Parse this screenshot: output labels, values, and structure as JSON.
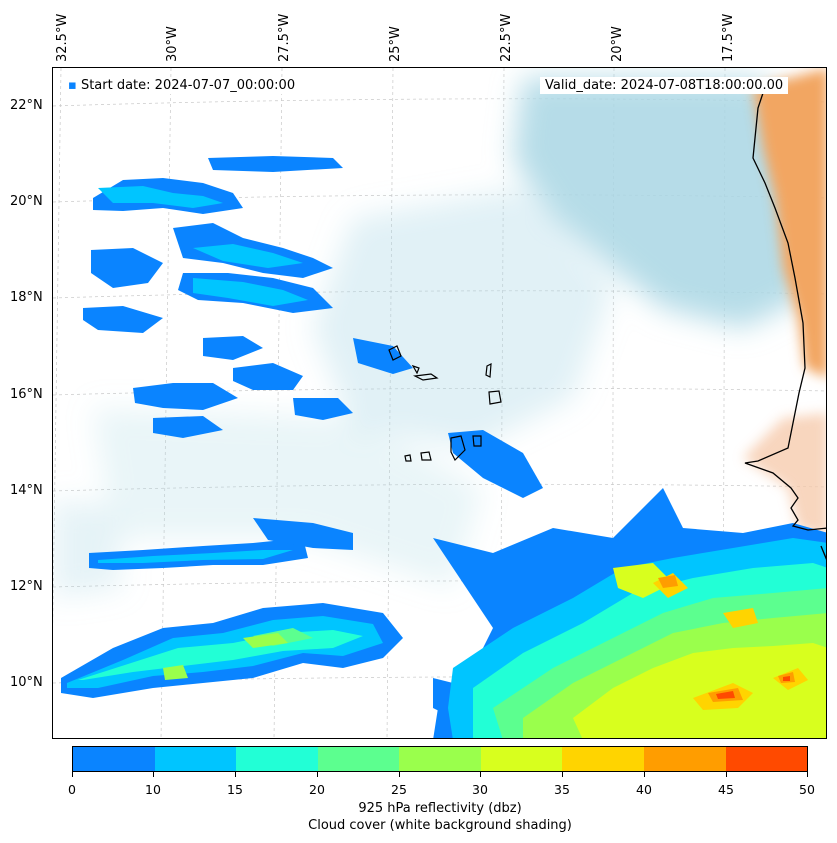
{
  "annotations": {
    "start_date": "Start date: 2024-07-07_00:00:00",
    "valid_date": "Valid_date: 2024-07-08T18:00:00.00"
  },
  "axes": {
    "lon_labels": [
      "32.5°W",
      "30°W",
      "27.5°W",
      "25°W",
      "22.5°W",
      "20°W",
      "17.5°W"
    ],
    "lat_labels": [
      "22°N",
      "20°N",
      "18°N",
      "16°N",
      "14°N",
      "12°N",
      "10°N"
    ]
  },
  "colorbar": {
    "ticks": [
      "0",
      "10",
      "15",
      "20",
      "25",
      "30",
      "35",
      "40",
      "45",
      "50"
    ],
    "colors": [
      "#0a84ff",
      "#00c5ff",
      "#22ffd6",
      "#5cff8f",
      "#9aff4c",
      "#d8ff1e",
      "#ffd400",
      "#ff9d00",
      "#ff4a00"
    ],
    "label": "925 hPa reflectivity (dbz)",
    "sublabel": "Cloud cover (white background shading)"
  },
  "map_colors": {
    "cloud": "#a9d6e4",
    "land": "#f2a662",
    "coast": "#000000"
  }
}
